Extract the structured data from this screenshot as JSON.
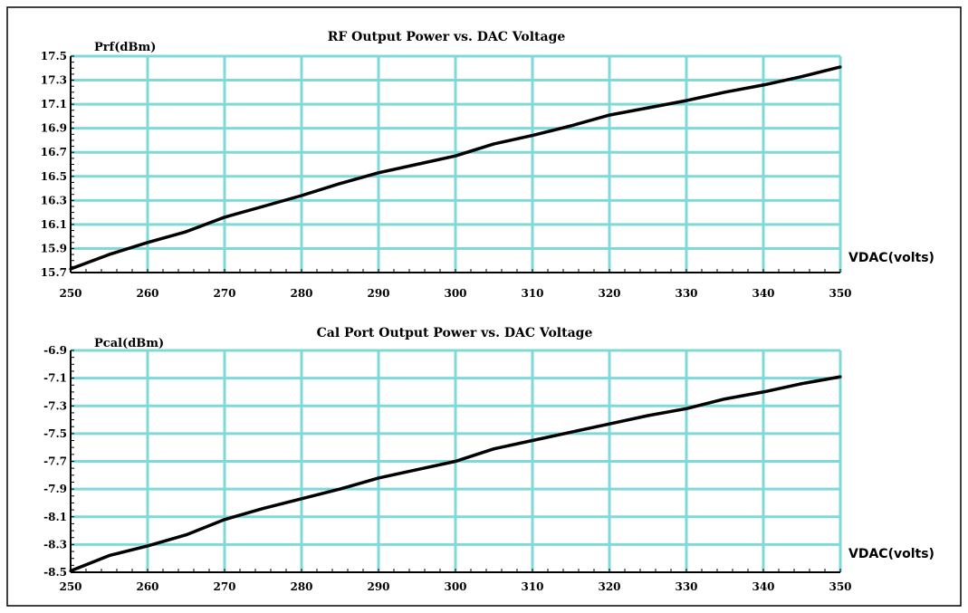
{
  "chart_data": [
    {
      "type": "line",
      "title": "RF Output Power vs. DAC Voltage",
      "ylabel": "Prf(dBm)",
      "xlabel": "VDAC(volts)",
      "xlim": [
        250,
        350
      ],
      "ylim": [
        15.7,
        17.5
      ],
      "x_ticks": [
        "250",
        "260",
        "270",
        "280",
        "290",
        "300",
        "310",
        "320",
        "330",
        "340",
        "350"
      ],
      "y_ticks": [
        "15.7",
        "15.9",
        "16.1",
        "16.3",
        "16.5",
        "16.7",
        "16.9",
        "17.1",
        "17.3",
        "17.5"
      ],
      "grid": true,
      "series": [
        {
          "x": [
            250,
            255,
            260,
            265,
            270,
            275,
            280,
            285,
            290,
            295,
            300,
            305,
            310,
            315,
            320,
            325,
            330,
            335,
            340,
            345,
            350
          ],
          "y": [
            15.73,
            15.85,
            15.95,
            16.04,
            16.16,
            16.25,
            16.34,
            16.44,
            16.53,
            16.6,
            16.67,
            16.77,
            16.84,
            16.92,
            17.01,
            17.07,
            17.13,
            17.2,
            17.26,
            17.33,
            17.41
          ]
        }
      ]
    },
    {
      "type": "line",
      "title": "Cal Port Output Power vs. DAC Voltage",
      "ylabel": "Pcal(dBm)",
      "xlabel": "VDAC(volts)",
      "xlim": [
        250,
        350
      ],
      "ylim": [
        -8.5,
        -6.9
      ],
      "x_ticks": [
        "250",
        "260",
        "270",
        "280",
        "290",
        "300",
        "310",
        "320",
        "330",
        "340",
        "350"
      ],
      "y_ticks": [
        "-8.5",
        "-8.3",
        "-8.1",
        "-7.9",
        "-7.7",
        "-7.5",
        "-7.3",
        "-7.1",
        "-6.9"
      ],
      "grid": true,
      "series": [
        {
          "x": [
            250,
            255,
            260,
            265,
            270,
            275,
            280,
            285,
            290,
            295,
            300,
            305,
            310,
            315,
            320,
            325,
            330,
            335,
            340,
            345,
            350
          ],
          "y": [
            -8.49,
            -8.38,
            -8.31,
            -8.23,
            -8.12,
            -8.04,
            -7.97,
            -7.9,
            -7.82,
            -7.76,
            -7.7,
            -7.61,
            -7.55,
            -7.49,
            -7.43,
            -7.37,
            -7.32,
            -7.25,
            -7.2,
            -7.14,
            -7.09
          ]
        }
      ]
    }
  ]
}
